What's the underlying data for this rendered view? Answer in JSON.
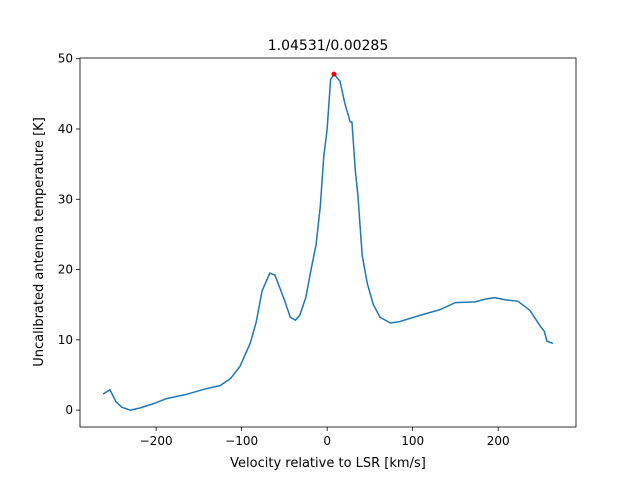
{
  "chart_data": {
    "type": "line",
    "title": "1.04531/0.00285",
    "xlabel": "Velocity relative to LSR [km/s]",
    "ylabel": "Uncalibrated antenna temperature [K]",
    "xlim": [
      -289,
      291
    ],
    "ylim": [
      -2.4,
      50.1
    ],
    "xticks": [
      {
        "value": -200,
        "label": "−200"
      },
      {
        "value": -100,
        "label": "−100"
      },
      0,
      100,
      200
    ],
    "yticks": [
      0,
      10,
      20,
      30,
      40,
      50
    ],
    "series": [
      {
        "color": "#1f77b4",
        "x": [
          -262,
          -254,
          -247,
          -240,
          -230,
          -219,
          -201,
          -189,
          -166,
          -143,
          -125,
          -113,
          -102,
          -90,
          -83,
          -76,
          -67,
          -61,
          -51,
          -43,
          -37,
          -32,
          -25,
          -18,
          -13,
          -8,
          -4,
          0,
          4,
          8,
          15,
          21,
          27,
          29,
          33,
          36,
          41,
          47,
          54,
          62,
          74,
          85,
          109,
          132,
          150,
          173,
          185,
          196,
          208,
          223,
          237,
          249,
          254,
          257,
          264
        ],
        "values": [
          2.3,
          2.9,
          1.2,
          0.4,
          0.0,
          0.3,
          1.0,
          1.6,
          2.2,
          3.0,
          3.5,
          4.5,
          6.2,
          9.5,
          12.5,
          17,
          19.5,
          19.2,
          16,
          13.2,
          12.8,
          13.5,
          16,
          20.5,
          23.5,
          29,
          36,
          40,
          47,
          47.8,
          46.8,
          43.5,
          41,
          41,
          34,
          30.5,
          22,
          18,
          15,
          13.2,
          12.4,
          12.6,
          13.5,
          14.3,
          15.3,
          15.4,
          15.8,
          16,
          15.7,
          15.5,
          14.2,
          12,
          11.2,
          9.8,
          9.5
        ]
      }
    ],
    "peak": {
      "x": 8,
      "y": 47.8,
      "color": "#ff0000"
    }
  }
}
